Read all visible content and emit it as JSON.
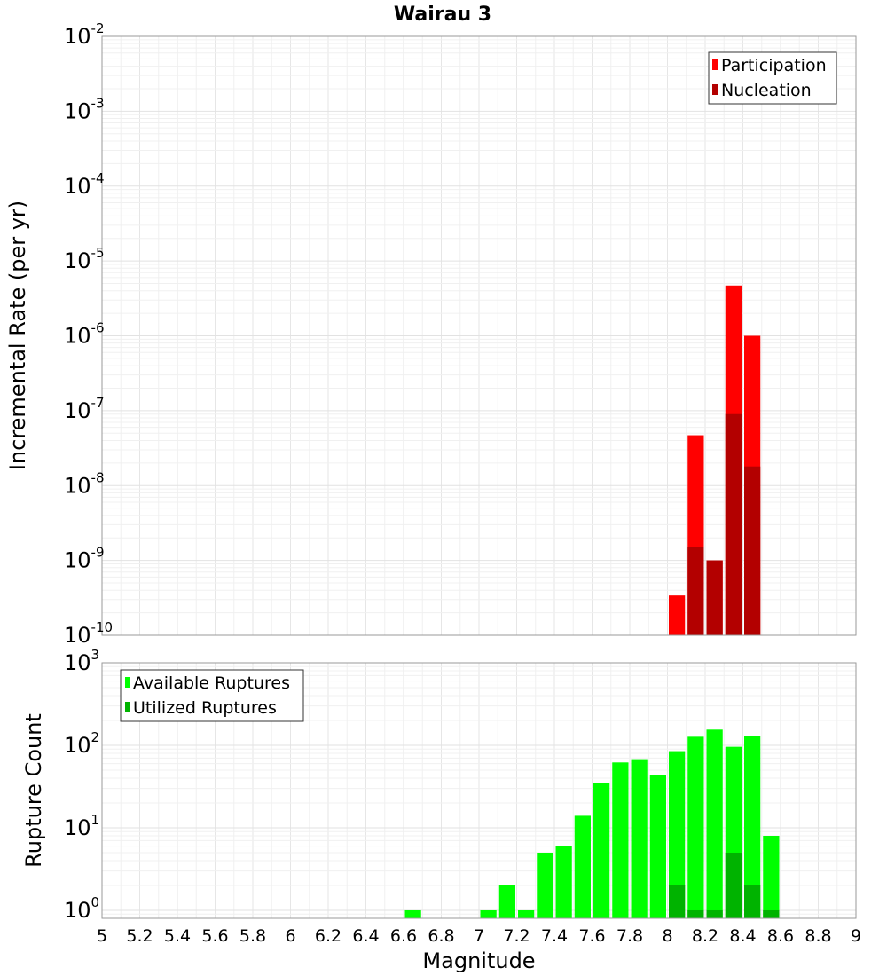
{
  "chart_data": [
    {
      "type": "bar",
      "title": "Wairau 3",
      "xlabel": "Magnitude",
      "ylabel": "Incremental Rate (per yr)",
      "yscale": "log",
      "ylim": [
        1e-10,
        0.01
      ],
      "xlim": [
        5,
        9
      ],
      "ytick_exponents": [
        -2,
        -3,
        -4,
        -5,
        -6,
        -7,
        -8,
        -9,
        -10
      ],
      "grid": true,
      "legend_position": "top-right",
      "bin_width": 0.1,
      "series": [
        {
          "name": "Participation",
          "color": "#ff0000",
          "x": [
            8.05,
            8.15,
            8.25,
            8.35,
            8.45
          ],
          "values": [
            3.4e-10,
            4.7e-08,
            1e-09,
            4.7e-06,
            1e-06
          ]
        },
        {
          "name": "Nucleation",
          "color": "#b30000",
          "x": [
            8.15,
            8.25,
            8.35,
            8.45
          ],
          "values": [
            1.5e-09,
            1e-09,
            9e-08,
            1.8e-08
          ]
        }
      ]
    },
    {
      "type": "bar",
      "xlabel": "Magnitude",
      "ylabel": "Rupture Count",
      "yscale": "log",
      "ylim": [
        0.8,
        1000
      ],
      "xlim": [
        5,
        9
      ],
      "ytick_exponents": [
        3,
        2,
        1,
        0
      ],
      "xticks": [
        "5",
        "5.2",
        "5.4",
        "5.6",
        "5.8",
        "6",
        "6.2",
        "6.4",
        "6.6",
        "6.8",
        "7",
        "7.2",
        "7.4",
        "7.6",
        "7.8",
        "8",
        "8.2",
        "8.4",
        "8.6",
        "8.8",
        "9"
      ],
      "grid": true,
      "legend_position": "top-left",
      "bin_width": 0.1,
      "series": [
        {
          "name": "Available Ruptures",
          "color": "#00ff00",
          "x": [
            6.65,
            7.05,
            7.15,
            7.25,
            7.35,
            7.45,
            7.55,
            7.65,
            7.75,
            7.85,
            7.95,
            8.05,
            8.15,
            8.25,
            8.35,
            8.45,
            8.55
          ],
          "values": [
            1,
            1,
            2,
            1,
            5,
            6,
            14,
            35,
            62,
            68,
            44,
            85,
            127,
            155,
            96,
            129,
            8
          ]
        },
        {
          "name": "Utilized Ruptures",
          "color": "#00b300",
          "x": [
            8.05,
            8.15,
            8.25,
            8.35,
            8.45,
            8.55
          ],
          "values": [
            2,
            1,
            1,
            5,
            2,
            1
          ]
        }
      ]
    }
  ]
}
